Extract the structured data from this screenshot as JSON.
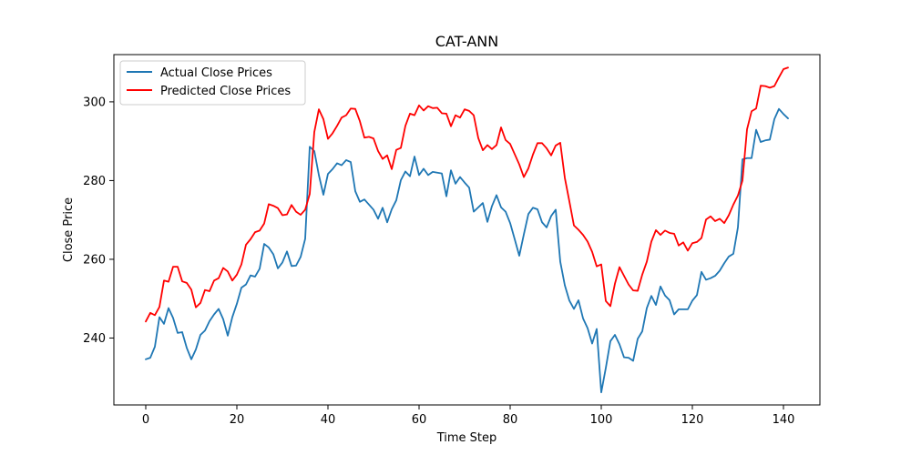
{
  "chart_data": {
    "type": "line",
    "title": "CAT-ANN",
    "xlabel": "Time Step",
    "ylabel": "Close Price",
    "xlim": [
      -7,
      148
    ],
    "ylim": [
      223,
      312
    ],
    "x_ticks": [
      0,
      20,
      40,
      60,
      80,
      100,
      120,
      140
    ],
    "y_ticks": [
      240,
      260,
      280,
      300
    ],
    "grid": false,
    "legend_position": "top-left",
    "series": [
      {
        "name": "Actual Close Prices",
        "color": "#1f77b4",
        "values": [
          234.6,
          235.0,
          237.8,
          245.3,
          243.6,
          247.6,
          245.1,
          241.3,
          241.5,
          237.5,
          234.6,
          237.1,
          240.8,
          241.9,
          244.3,
          246.0,
          247.4,
          244.8,
          240.6,
          245.3,
          248.7,
          252.8,
          253.6,
          255.9,
          255.6,
          257.6,
          263.9,
          263.0,
          261.3,
          257.7,
          259.2,
          262.0,
          258.3,
          258.4,
          260.6,
          265.2,
          288.6,
          287.5,
          281.4,
          276.4,
          281.7,
          282.9,
          284.4,
          283.9,
          285.2,
          284.7,
          277.3,
          274.6,
          275.2,
          273.9,
          272.6,
          270.3,
          273.1,
          269.4,
          272.7,
          275.0,
          280.1,
          282.3,
          281.1,
          286.1,
          281.4,
          283.0,
          281.4,
          282.2,
          282.0,
          281.8,
          276.0,
          282.6,
          279.2,
          280.9,
          279.5,
          278.2,
          272.1,
          273.2,
          274.3,
          269.5,
          273.5,
          276.3,
          273.2,
          272.1,
          269.2,
          265.1,
          260.9,
          266.3,
          271.5,
          273.1,
          272.7,
          269.4,
          268.1,
          271.0,
          272.6,
          259.4,
          253.4,
          249.5,
          247.4,
          249.6,
          245.0,
          242.5,
          238.6,
          242.3,
          226.2,
          232.4,
          239.2,
          240.8,
          238.4,
          235.1,
          235.0,
          234.2,
          239.8,
          241.7,
          247.6,
          250.7,
          248.4,
          253.1,
          250.8,
          249.6,
          246.0,
          247.3,
          247.3,
          247.3,
          249.5,
          250.9,
          256.8,
          254.8,
          255.2,
          255.8,
          257.1,
          259.0,
          260.7,
          261.4,
          268.1,
          285.4,
          285.7,
          285.7,
          292.9,
          289.8,
          290.2,
          290.4,
          295.6,
          298.2,
          296.9,
          295.8
        ]
      },
      {
        "name": "Predicted Close Prices",
        "color": "#ff0000",
        "values": [
          244.2,
          246.4,
          245.8,
          247.9,
          254.6,
          254.3,
          258.1,
          258.1,
          254.4,
          254.0,
          252.3,
          247.8,
          248.9,
          252.2,
          251.9,
          254.6,
          255.2,
          257.8,
          256.9,
          254.6,
          256.1,
          258.7,
          263.7,
          265.1,
          266.9,
          267.3,
          269.1,
          274.0,
          273.6,
          273.0,
          271.2,
          271.4,
          273.8,
          272.1,
          271.3,
          272.6,
          276.6,
          292.3,
          298.1,
          295.6,
          290.6,
          292.0,
          293.9,
          296.0,
          296.6,
          298.3,
          298.2,
          295.1,
          290.9,
          291.1,
          290.7,
          287.5,
          285.5,
          286.4,
          282.9,
          287.8,
          288.3,
          293.9,
          297.0,
          296.6,
          299.1,
          297.8,
          298.9,
          298.4,
          298.5,
          297.1,
          297.0,
          293.8,
          296.6,
          296.0,
          298.1,
          297.7,
          296.6,
          290.8,
          287.7,
          289.0,
          288.0,
          289.0,
          293.5,
          290.3,
          289.3,
          286.7,
          284.1,
          280.9,
          283.1,
          286.6,
          289.5,
          289.5,
          288.2,
          286.4,
          288.9,
          289.6,
          280.7,
          274.7,
          268.6,
          267.5,
          266.2,
          264.5,
          261.9,
          258.2,
          258.7,
          249.4,
          248.1,
          253.8,
          258.0,
          255.8,
          253.6,
          252.1,
          252.0,
          256.1,
          259.4,
          264.5,
          267.4,
          266.2,
          267.3,
          266.7,
          266.5,
          263.5,
          264.3,
          262.2,
          264.1,
          264.4,
          265.4,
          270.1,
          270.9,
          269.7,
          270.3,
          269.2,
          271.2,
          273.9,
          276.2,
          280.0,
          293.0,
          297.6,
          298.3,
          304.1,
          304.0,
          303.6,
          304.0,
          306.2,
          308.3,
          308.7
        ]
      }
    ]
  }
}
